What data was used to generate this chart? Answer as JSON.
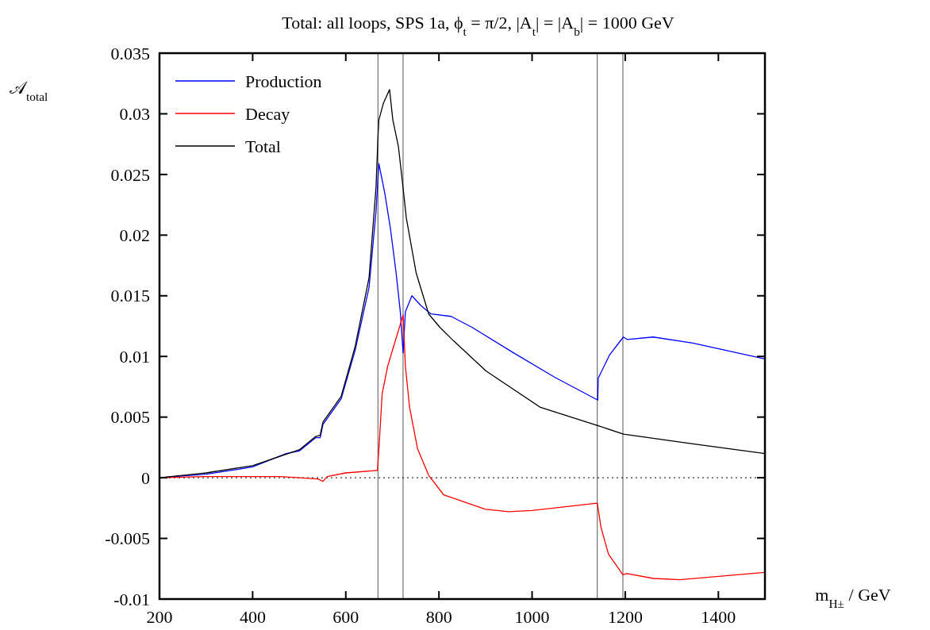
{
  "chart_data": {
    "type": "line",
    "title": "Total: all loops, SPS 1a, ϕ$_{t}$ = π/2, |A$_{t}$| = |A$_{b}$| = 1000 GeV",
    "xlabel": "m$_{H±}$  / GeV",
    "ylabel": "𝒜$_{total}$",
    "xlim": [
      200,
      1500
    ],
    "xticks": [
      200,
      400,
      600,
      800,
      1000,
      1200,
      1400
    ],
    "ylim": [
      -0.01,
      0.035
    ],
    "yticks": [
      {
        "value": -0.01,
        "label": "-0.01"
      },
      {
        "value": -0.005,
        "label": "-0.005"
      },
      0,
      0.005,
      0.01,
      0.015,
      0.02,
      0.025,
      0.03,
      0.035
    ],
    "grid": false,
    "legend": "top left",
    "line_style": "solid",
    "series": [
      {
        "name": "Production",
        "color": "#0000ff",
        "x": [
          200,
          300,
          370,
          400,
          472,
          500,
          535,
          545,
          551,
          590,
          620,
          650,
          665,
          671,
          684,
          696,
          708,
          717,
          723,
          728,
          742,
          761,
          783,
          826,
          871,
          960,
          1048,
          1141,
          1142,
          1166,
          1196,
          1204,
          1260,
          1345,
          1500
        ],
        "values": [
          0,
          0.0003,
          0.0007,
          0.0009,
          0.002,
          0.0022,
          0.0033,
          0.0033,
          0.0044,
          0.0065,
          0.0105,
          0.0157,
          0.022,
          0.0259,
          0.0234,
          0.0205,
          0.0169,
          0.0137,
          0.0103,
          0.0137,
          0.015,
          0.0142,
          0.0135,
          0.0133,
          0.0124,
          0.0103,
          0.0083,
          0.0064,
          0.0082,
          0.0101,
          0.0116,
          0.0114,
          0.0116,
          0.0111,
          0.0098
        ]
      },
      {
        "name": "Decay",
        "color": "#ff0000",
        "x": [
          200,
          300,
          460,
          500,
          540,
          551,
          560,
          600,
          668,
          672,
          678,
          690,
          708,
          723,
          728,
          737,
          754,
          778,
          810,
          900,
          950,
          1000,
          1140,
          1148,
          1164,
          1195,
          1204,
          1260,
          1317,
          1500
        ],
        "values": [
          0,
          0.0001,
          0.0001,
          0,
          -0.0001,
          -0.0003,
          0.0001,
          0.0004,
          0.0006,
          0.0029,
          0.0069,
          0.0092,
          0.0115,
          0.0134,
          0.0092,
          0.0058,
          0.0024,
          0.0002,
          -0.0014,
          -0.0026,
          -0.0028,
          -0.0027,
          -0.0021,
          -0.0041,
          -0.0063,
          -0.008,
          -0.0079,
          -0.0083,
          -0.0084,
          -0.0078
        ]
      },
      {
        "name": "Total",
        "color": "#000000",
        "x": [
          200,
          300,
          400,
          500,
          535,
          545,
          551,
          590,
          620,
          650,
          665,
          669,
          671,
          681,
          694,
          701,
          713,
          723,
          730,
          751,
          778,
          802,
          831,
          901,
          1018,
          1141,
          1196,
          1345,
          1500
        ],
        "values": [
          0,
          0.0004,
          0.001,
          0.0023,
          0.0034,
          0.0035,
          0.0046,
          0.0067,
          0.0108,
          0.0165,
          0.024,
          0.028,
          0.0295,
          0.0309,
          0.032,
          0.0295,
          0.0273,
          0.0239,
          0.0214,
          0.0169,
          0.0135,
          0.0124,
          0.0113,
          0.0088,
          0.0058,
          0.0043,
          0.0036,
          0.0028,
          0.002
        ]
      }
    ],
    "ref_lines": [
      {
        "axis": "x",
        "value": 669,
        "color": "#555555",
        "line_style": "solid"
      },
      {
        "axis": "x",
        "value": 723,
        "color": "#555555",
        "line_style": "solid"
      },
      {
        "axis": "x",
        "value": 1140,
        "color": "#555555",
        "line_style": "solid"
      },
      {
        "axis": "x",
        "value": 1195,
        "color": "#555555",
        "line_style": "solid"
      },
      {
        "axis": "y",
        "value": 0,
        "color": "#000000",
        "line_style": "dotted"
      }
    ]
  }
}
